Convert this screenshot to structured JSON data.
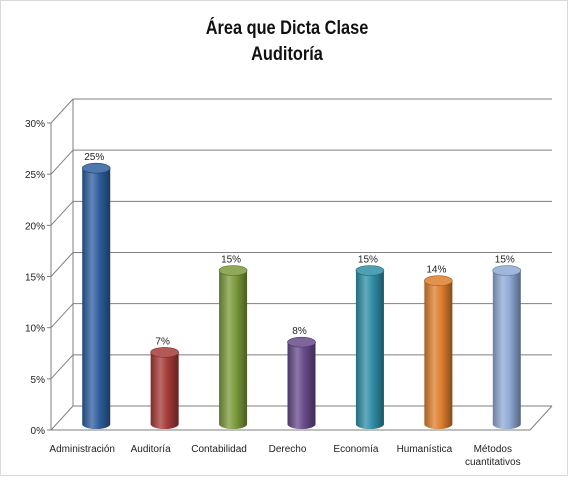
{
  "chart_data": {
    "type": "bar",
    "style": "3d-cylinder",
    "title": "Área que Dicta Clase",
    "subtitle": "Auditoría",
    "categories": [
      "Administración",
      "Auditoría",
      "Contabilidad",
      "Derecho",
      "Economía",
      "Humanística",
      "Métodos cuantitativos"
    ],
    "category_lines": [
      [
        "Administración"
      ],
      [
        "Auditoría"
      ],
      [
        "Contabilidad"
      ],
      [
        "Derecho"
      ],
      [
        "Economía"
      ],
      [
        "Humanística"
      ],
      [
        "Métodos",
        "cuantitativos"
      ]
    ],
    "values": [
      25,
      7,
      15,
      8,
      15,
      14,
      15
    ],
    "data_labels": [
      "25%",
      "7%",
      "15%",
      "8%",
      "15%",
      "14%",
      "15%"
    ],
    "y_ticks": [
      "0%",
      "5%",
      "10%",
      "15%",
      "20%",
      "25%",
      "30%"
    ],
    "ylim": [
      0,
      30
    ],
    "grid": true,
    "legend": "none",
    "colors": [
      "#2e5f9e",
      "#a63a37",
      "#7b9a3b",
      "#674a8a",
      "#2f8ea6",
      "#de7f2e",
      "#8fa9d6"
    ]
  }
}
